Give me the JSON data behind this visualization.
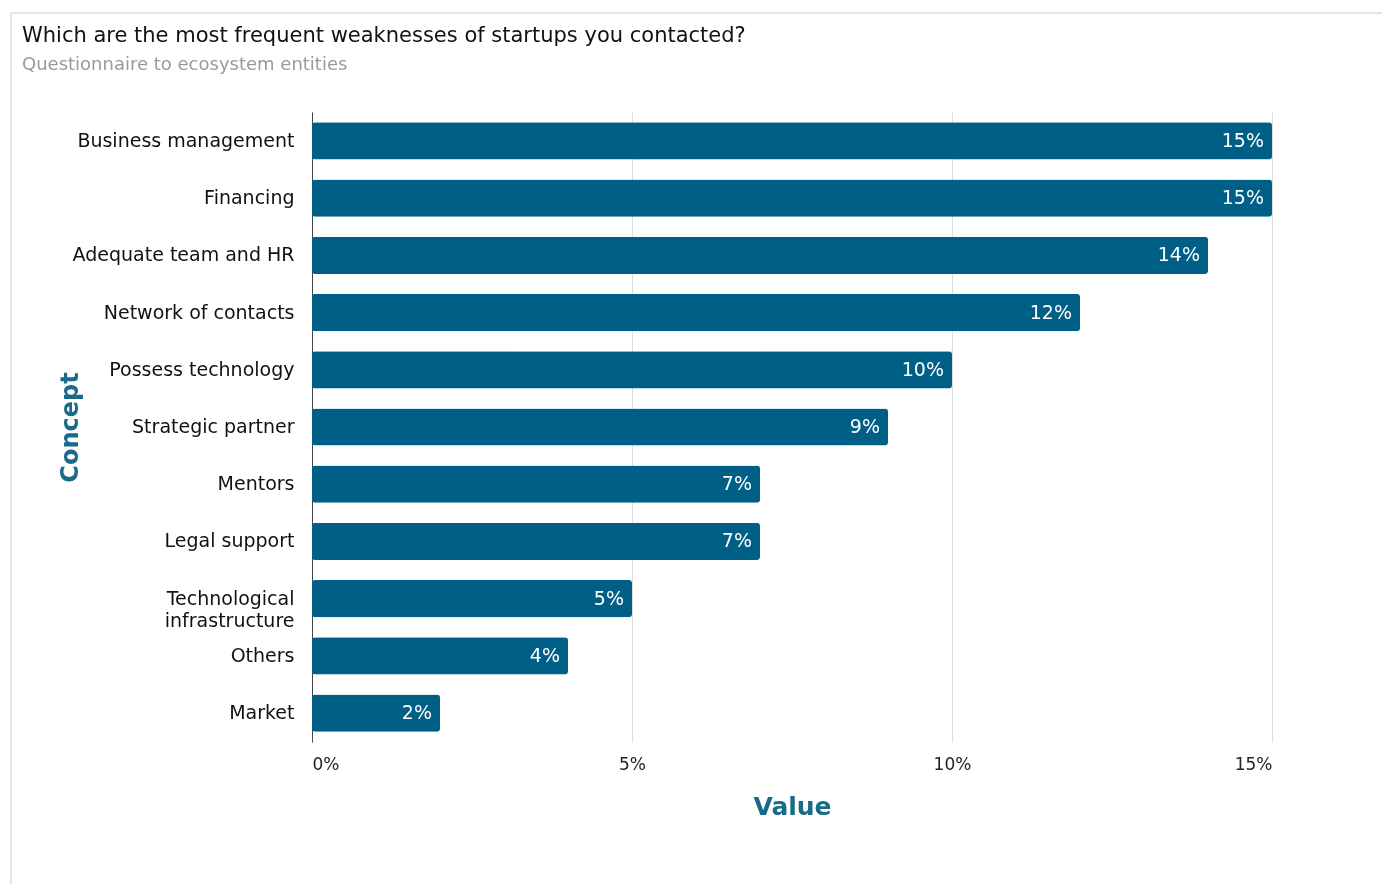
{
  "chart_data": {
    "type": "bar",
    "orientation": "horizontal",
    "title": "Which are the most frequent weaknesses of startups you contacted?",
    "subtitle": "Questionnaire to ecosystem entities",
    "xlabel": "Value",
    "ylabel": "Concept",
    "categories": [
      "Business management",
      "Financing",
      "Adequate team and HR",
      "Network of contacts",
      "Possess technology",
      "Strategic partner",
      "Mentors",
      "Legal support",
      "Technological infrastructure",
      "Others",
      "Market"
    ],
    "values": [
      15,
      15,
      14,
      12,
      10,
      9,
      7,
      7,
      5,
      4,
      2
    ],
    "value_labels": [
      "15%",
      "15%",
      "14%",
      "12%",
      "10%",
      "9%",
      "7%",
      "7%",
      "5%",
      "4%",
      "2%"
    ],
    "color": "#005f87",
    "xlim": [
      0,
      15
    ],
    "xticks": [
      {
        "value": 0,
        "label": "0%"
      },
      {
        "value": 5,
        "label": "5%"
      },
      {
        "value": 10,
        "label": "10%"
      },
      {
        "value": 15,
        "label": "15%"
      }
    ],
    "grid": "x"
  }
}
